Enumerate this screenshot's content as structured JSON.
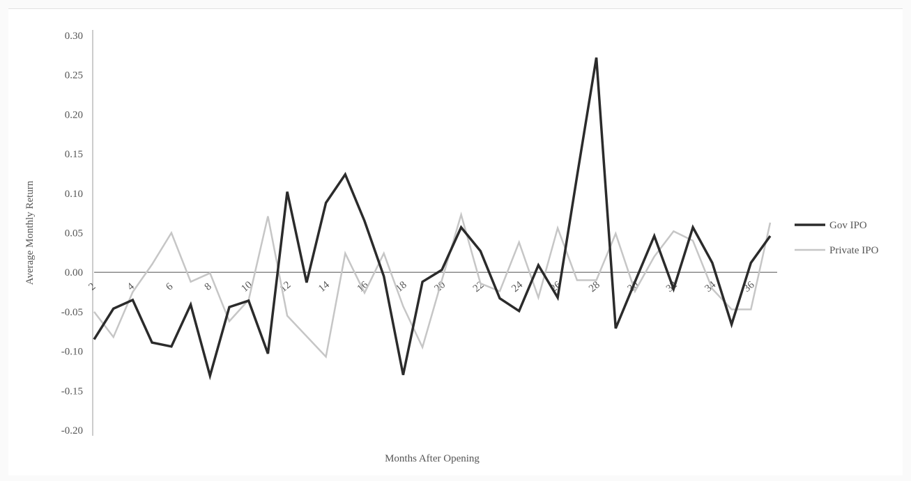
{
  "chart_data": {
    "type": "line",
    "xlabel": "Months After Opening",
    "ylabel": "Average Monthly Return",
    "xlim": [
      2,
      37
    ],
    "ylim": [
      -0.2,
      0.3
    ],
    "yticks": [
      0.3,
      0.25,
      0.2,
      0.15,
      0.1,
      0.05,
      0.0,
      -0.05,
      -0.1,
      -0.15,
      -0.2
    ],
    "ytick_labels": [
      "0.30",
      "0.25",
      "0.20",
      "0.15",
      "0.10",
      "0.05",
      "0.00",
      "-0.05",
      "-0.10",
      "-0.15",
      "-0.20"
    ],
    "xticks": [
      2,
      4,
      6,
      8,
      10,
      12,
      14,
      16,
      18,
      20,
      22,
      24,
      26,
      28,
      30,
      32,
      34,
      36
    ],
    "xtick_labels": [
      "2",
      "4",
      "6",
      "8",
      "10",
      "12",
      "14",
      "16",
      "18",
      "20",
      "22",
      "24",
      "26",
      "28",
      "30",
      "32",
      "34",
      "36"
    ],
    "grid": false,
    "legend_position": "right",
    "x": [
      2,
      3,
      4,
      5,
      6,
      7,
      8,
      9,
      10,
      11,
      12,
      13,
      14,
      15,
      16,
      17,
      18,
      19,
      20,
      21,
      22,
      23,
      24,
      25,
      26,
      27,
      28,
      29,
      30,
      31,
      32,
      33,
      34,
      35,
      36,
      37
    ],
    "series": [
      {
        "name": "Gov IPO",
        "color": "#2b2b2b",
        "values": [
          -0.085,
          -0.046,
          -0.035,
          -0.089,
          -0.094,
          -0.041,
          -0.131,
          -0.044,
          -0.036,
          -0.103,
          0.102,
          -0.013,
          0.088,
          0.124,
          0.065,
          -0.005,
          -0.13,
          -0.012,
          0.003,
          0.057,
          0.027,
          -0.033,
          -0.049,
          0.009,
          -0.032,
          0.122,
          0.272,
          -0.071,
          -0.012,
          0.046,
          -0.021,
          0.057,
          0.012,
          -0.066,
          0.012,
          0.046
        ]
      },
      {
        "name": "Private IPO",
        "color": "#c6c6c6",
        "values": [
          -0.05,
          -0.082,
          -0.025,
          0.01,
          0.05,
          -0.012,
          -0.001,
          -0.062,
          -0.035,
          0.071,
          -0.055,
          -0.081,
          -0.107,
          0.024,
          -0.026,
          0.024,
          -0.043,
          -0.095,
          -0.01,
          0.073,
          -0.014,
          -0.024,
          0.038,
          -0.032,
          0.056,
          -0.01,
          -0.01,
          0.049,
          -0.024,
          0.02,
          0.052,
          0.04,
          -0.021,
          -0.047,
          -0.047,
          0.063
        ]
      }
    ]
  }
}
